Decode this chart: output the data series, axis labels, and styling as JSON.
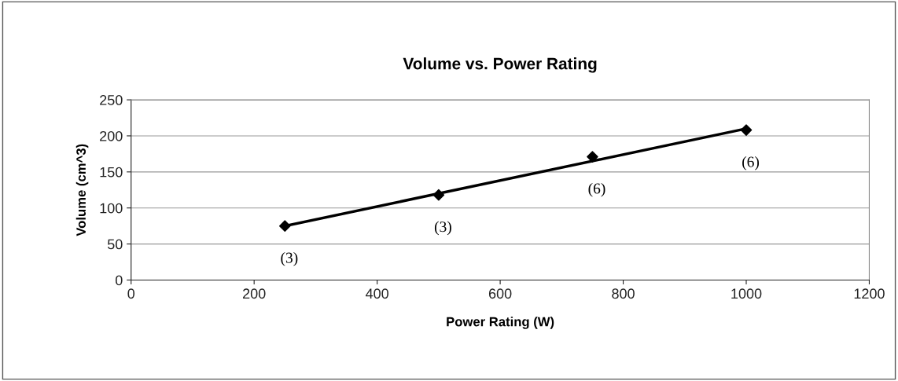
{
  "chart_data": {
    "type": "scatter",
    "title": "Volume vs. Power Rating",
    "xlabel": "Power Rating (W)",
    "ylabel": "Volume (cm^3)",
    "series": [
      {
        "color": "#000000",
        "marker": "diamond",
        "x": [
          250,
          500,
          750,
          1000
        ],
        "values": [
          75,
          118,
          171,
          208
        ]
      },
      {
        "type": "line",
        "color": "#000000",
        "marker": "none",
        "x": [
          250,
          1000
        ],
        "values": [
          75,
          210
        ]
      }
    ],
    "xlim": [
      0,
      1200
    ],
    "xticks": [
      0,
      200,
      400,
      600,
      800,
      1000,
      1200
    ],
    "ylim": [
      0,
      250
    ],
    "yticks": [
      0,
      50,
      100,
      150,
      200,
      250
    ],
    "grid": "y",
    "legend": false,
    "annotations": [
      {
        "text": "(3)",
        "x": 250,
        "y": 75
      },
      {
        "text": "(3)",
        "x": 500,
        "y": 118
      },
      {
        "text": "(6)",
        "x": 750,
        "y": 171
      },
      {
        "text": "(6)",
        "x": 1000,
        "y": 208
      }
    ]
  }
}
